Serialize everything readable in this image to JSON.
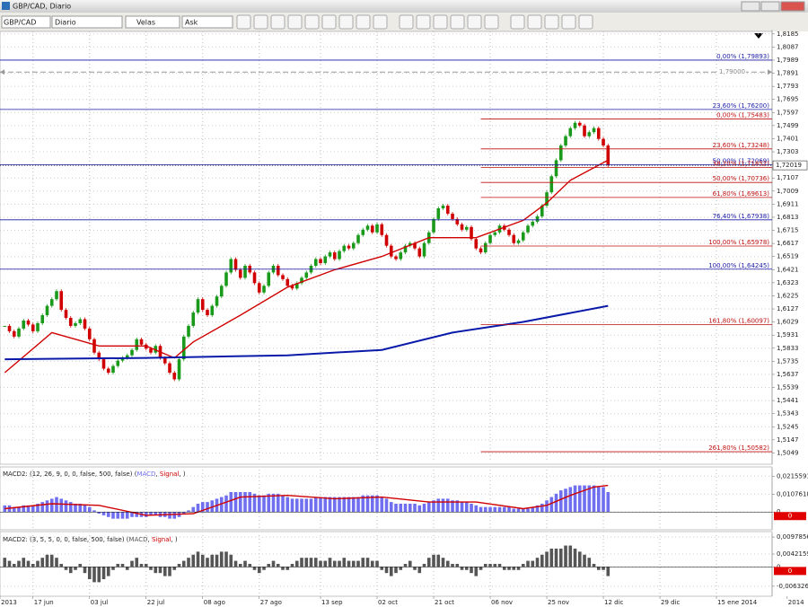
{
  "window": {
    "title": "GBP/CAD, Diario",
    "toolbar": {
      "symbol": "GBP/CAD",
      "period": "Diario",
      "chart_style": "Velas",
      "price_side": "Ask"
    }
  },
  "chart_data": [
    {
      "type": "candlestick",
      "up_color": "#1a9a1a",
      "down_color": "#d00000",
      "xlim": [
        -1,
        162.8
      ],
      "ylim": [
        1.4978,
        1.8204
      ],
      "grid": true,
      "values": [
        1.6,
        1.596,
        1.592,
        1.598,
        1.604,
        1.601,
        1.596,
        1.602,
        1.608,
        1.615,
        1.62,
        1.626,
        1.612,
        1.606,
        1.6,
        1.602,
        1.605,
        1.598,
        1.59,
        1.58,
        1.575,
        1.568,
        1.565,
        1.57,
        1.574,
        1.576,
        1.578,
        1.582,
        1.59,
        1.586,
        1.583,
        1.58,
        1.585,
        1.576,
        1.572,
        1.565,
        1.56,
        1.575,
        1.592,
        1.6,
        1.61,
        1.62,
        1.612,
        1.608,
        1.615,
        1.622,
        1.63,
        1.64,
        1.65,
        1.642,
        1.636,
        1.645,
        1.64,
        1.632,
        1.625,
        1.63,
        1.64,
        1.645,
        1.638,
        1.635,
        1.63,
        1.628,
        1.632,
        1.636,
        1.64,
        1.645,
        1.65,
        1.647,
        1.652,
        1.655,
        1.65,
        1.656,
        1.66,
        1.658,
        1.662,
        1.668,
        1.672,
        1.675,
        1.67,
        1.676,
        1.668,
        1.66,
        1.652,
        1.65,
        1.655,
        1.66,
        1.662,
        1.658,
        1.652,
        1.662,
        1.67,
        1.68,
        1.688,
        1.69,
        1.684,
        1.68,
        1.676,
        1.672,
        1.674,
        1.665,
        1.658,
        1.655,
        1.662,
        1.668,
        1.67,
        1.675,
        1.672,
        1.668,
        1.662,
        1.664,
        1.67,
        1.675,
        1.678,
        1.682,
        1.69,
        1.7,
        1.712,
        1.724,
        1.735,
        1.742,
        1.748,
        1.752,
        1.75,
        1.742,
        1.745,
        1.748,
        1.74,
        1.735,
        1.72019
      ],
      "lines": [
        {
          "color": "#d00000",
          "x": [
            0,
            10,
            20,
            30,
            36,
            40,
            50,
            60,
            70,
            80,
            90,
            100,
            110,
            115,
            120,
            128
          ],
          "values": [
            1.565,
            1.595,
            1.585,
            1.585,
            1.576,
            1.588,
            1.608,
            1.629,
            1.642,
            1.652,
            1.666,
            1.666,
            1.679,
            1.692,
            1.709,
            1.724
          ]
        },
        {
          "color": "#0a1aa8",
          "x": [
            0,
            30,
            60,
            80,
            95,
            110,
            128
          ],
          "values": [
            1.575,
            1.576,
            1.578,
            1.582,
            1.595,
            1.603,
            1.615
          ]
        }
      ],
      "fib_sets": [
        {
          "color": "#1a1aa6",
          "start_x": -1,
          "levels": [
            {
              "label": "0,00% (1,79893)",
              "value": 1.79893
            },
            {
              "label": "23,60% (1,76200)",
              "value": 1.762
            },
            {
              "label": "50,00% (1,72069)",
              "value": 1.72069
            },
            {
              "label": "76,40% (1,67938)",
              "value": 1.67938
            },
            {
              "label": "100,00% (1,64245)",
              "value": 1.64245
            }
          ]
        },
        {
          "color": "#c01010",
          "start_x": 101,
          "levels": [
            {
              "label": "0,00% (1,75483)",
              "value": 1.75483
            },
            {
              "label": "23,60% (1,73248)",
              "value": 1.73248
            },
            {
              "label": "38,20% (1,71852)",
              "value": 1.71852
            },
            {
              "label": "50,00% (1,70736)",
              "value": 1.70736
            },
            {
              "label": "61,80% (1,69613)",
              "value": 1.69613
            },
            {
              "label": "100,00% (1,65978)",
              "value": 1.65978
            },
            {
              "label": "161,80% (1,60097)",
              "value": 1.60097
            },
            {
              "label": "261,80% (1,50582)",
              "value": 1.50582
            }
          ]
        }
      ],
      "reference_line": {
        "value": 1.79,
        "label": "1,79000"
      },
      "last_price": {
        "value": 1.72019,
        "label": "1,72019"
      },
      "yticks": [
        {
          "value": 1.8185,
          "label": "1,8185"
        },
        {
          "value": 1.8087,
          "label": "1,8087"
        },
        {
          "value": 1.7989,
          "label": "1,7989"
        },
        {
          "value": 1.7891,
          "label": "1,7891"
        },
        {
          "value": 1.7793,
          "label": "1,7793"
        },
        {
          "value": 1.7695,
          "label": "1,7695"
        },
        {
          "value": 1.7597,
          "label": "1,7597"
        },
        {
          "value": 1.7499,
          "label": "1,7499"
        },
        {
          "value": 1.7401,
          "label": "1,7401"
        },
        {
          "value": 1.7303,
          "label": "1,7303"
        },
        {
          "value": 1.7205,
          "label": "1,7205"
        },
        {
          "value": 1.7107,
          "label": "1,7107"
        },
        {
          "value": 1.7009,
          "label": "1,7009"
        },
        {
          "value": 1.6911,
          "label": "1,6911"
        },
        {
          "value": 1.6813,
          "label": "1,6813"
        },
        {
          "value": 1.6715,
          "label": "1,6715"
        },
        {
          "value": 1.6617,
          "label": "1,6617"
        },
        {
          "value": 1.6519,
          "label": "1,6519"
        },
        {
          "value": 1.6421,
          "label": "1,6421"
        },
        {
          "value": 1.6323,
          "label": "1,6323"
        },
        {
          "value": 1.6225,
          "label": "1,6225"
        },
        {
          "value": 1.6127,
          "label": "1,6127"
        },
        {
          "value": 1.6029,
          "label": "1,6029"
        },
        {
          "value": 1.5931,
          "label": "1,5931"
        },
        {
          "value": 1.5833,
          "label": "1,5833"
        },
        {
          "value": 1.5735,
          "label": "1,5735"
        },
        {
          "value": 1.5637,
          "label": "1,5637"
        },
        {
          "value": 1.5539,
          "label": "1,5539"
        },
        {
          "value": 1.5441,
          "label": "1,5441"
        },
        {
          "value": 1.5343,
          "label": "1,5343"
        },
        {
          "value": 1.5245,
          "label": "1,5245"
        },
        {
          "value": 1.5147,
          "label": "1,5147"
        },
        {
          "value": 1.5049,
          "label": "1,5049"
        }
      ]
    },
    {
      "type": "bar",
      "xlim": [
        -1,
        162.8
      ],
      "ylim": [
        -0.0096,
        0.0255
      ],
      "grid": true,
      "legend_prefix": "MACD2: (12, 26, 9, 0, 0, false, 500, false) (",
      "legend_separator": ", ",
      "legend_suffix": ", )",
      "last_value": 0,
      "yticks": [
        {
          "value": 0.0215591,
          "label": "0,0215591"
        },
        {
          "value": 0.0107618,
          "label": "0,0107618"
        },
        0
      ],
      "series": [
        {
          "name": "MACD",
          "color": "#6f6ff0",
          "values": [
            0.004,
            0.004,
            0.003,
            0.003,
            0.004,
            0.004,
            0.004,
            0.005,
            0.006,
            0.007,
            0.008,
            0.009,
            0.008,
            0.007,
            0.006,
            0.005,
            0.005,
            0.004,
            0.003,
            0.001,
            -0.001,
            -0.002,
            -0.003,
            -0.004,
            -0.004,
            -0.004,
            -0.004,
            -0.003,
            -0.003,
            -0.003,
            -0.003,
            -0.002,
            -0.002,
            -0.003,
            -0.003,
            -0.004,
            -0.004,
            -0.003,
            -0.001,
            0.001,
            0.003,
            0.005,
            0.006,
            0.006,
            0.007,
            0.008,
            0.009,
            0.01,
            0.012,
            0.012,
            0.012,
            0.012,
            0.012,
            0.011,
            0.01,
            0.01,
            0.011,
            0.011,
            0.011,
            0.01,
            0.009,
            0.008,
            0.008,
            0.008,
            0.008,
            0.008,
            0.009,
            0.009,
            0.009,
            0.009,
            0.009,
            0.009,
            0.009,
            0.009,
            0.009,
            0.009,
            0.01,
            0.01,
            0.01,
            0.01,
            0.009,
            0.008,
            0.006,
            0.005,
            0.005,
            0.005,
            0.005,
            0.005,
            0.004,
            0.005,
            0.006,
            0.007,
            0.008,
            0.008,
            0.008,
            0.007,
            0.007,
            0.006,
            0.006,
            0.005,
            0.004,
            0.003,
            0.003,
            0.003,
            0.003,
            0.003,
            0.003,
            0.003,
            0.002,
            0.002,
            0.002,
            0.002,
            0.003,
            0.004,
            0.005,
            0.007,
            0.009,
            0.011,
            0.013,
            0.014,
            0.015,
            0.016,
            0.016,
            0.016,
            0.016,
            0.016,
            0.015,
            0.015,
            0.012
          ]
        },
        {
          "name": "Signal",
          "color": "#d00000",
          "x": [
            0,
            10,
            20,
            30,
            40,
            50,
            60,
            70,
            80,
            90,
            100,
            110,
            115,
            120,
            125,
            128
          ],
          "values": [
            0.002,
            0.005,
            0.004,
            -0.002,
            -0.001,
            0.009,
            0.01,
            0.008,
            0.009,
            0.006,
            0.006,
            0.002,
            0.004,
            0.01,
            0.015,
            0.016
          ]
        }
      ]
    },
    {
      "type": "bar",
      "xlim": [
        -1,
        162.8
      ],
      "ylim": [
        -0.009,
        0.0104
      ],
      "grid": true,
      "legend_prefix": "MACD2: (3, 5, 5, 0, 0, false, 500, false) (",
      "legend_separator": ", ",
      "legend_suffix": ", )",
      "last_value": 0,
      "yticks": [
        {
          "value": 0.0097856,
          "label": "0,0097856"
        },
        {
          "value": 0.0042159,
          "label": "0,0042159"
        },
        0,
        {
          "value": -0.0063261,
          "label": "-0,0063261"
        }
      ],
      "series": [
        {
          "name": "MACD",
          "color": "#555555",
          "values": [
            0.003,
            0.002,
            0.001,
            0.002,
            0.003,
            0.002,
            0.001,
            0.002,
            0.003,
            0.004,
            0.004,
            0.003,
            0.001,
            -0.001,
            -0.002,
            -0.001,
            0.001,
            -0.002,
            -0.004,
            -0.005,
            -0.005,
            -0.004,
            -0.003,
            -0.001,
            0.001,
            0.001,
            -0.001,
            0.002,
            0.003,
            0.001,
            0.001,
            -0.001,
            -0.002,
            -0.002,
            -0.003,
            -0.003,
            -0.001,
            0.001,
            0.002,
            0.003,
            0.004,
            0.005,
            0.004,
            0.003,
            0.004,
            0.004,
            0.005,
            0.005,
            0.004,
            0.002,
            0.001,
            0.002,
            0.001,
            -0.001,
            -0.002,
            -0.001,
            0.001,
            0.002,
            0.001,
            -0.001,
            -0.001,
            0.001,
            0.002,
            0.003,
            0.003,
            0.003,
            0.003,
            0.002,
            0.002,
            0.003,
            0.002,
            0.002,
            0.003,
            0.002,
            0.002,
            0.002,
            0.003,
            0.003,
            0.002,
            0.002,
            -0.001,
            -0.002,
            -0.003,
            -0.002,
            -0.001,
            0.001,
            0.002,
            -0.001,
            -0.002,
            0.001,
            0.003,
            0.004,
            0.004,
            0.003,
            0.002,
            0.001,
            0.001,
            -0.001,
            -0.001,
            -0.002,
            -0.003,
            -0.001,
            0.001,
            0.001,
            0.001,
            0.001,
            -0.001,
            -0.001,
            -0.001,
            -0.001,
            0.001,
            0.002,
            0.002,
            0.003,
            0.004,
            0.005,
            0.006,
            0.006,
            0.006,
            0.007,
            0.007,
            0.006,
            0.005,
            0.004,
            0.003,
            0.001,
            -0.001,
            -0.001,
            -0.003
          ]
        },
        {
          "name": "Signal",
          "color": "#d00000"
        }
      ],
      "xticks": [
        {
          "value": -1,
          "label": "2013"
        },
        {
          "value": 6,
          "label": "17 jun"
        },
        {
          "value": 18,
          "label": "03 jul"
        },
        {
          "value": 30,
          "label": "22 jul"
        },
        {
          "value": 42,
          "label": "08 ago"
        },
        {
          "value": 54,
          "label": "27 ago"
        },
        {
          "value": 67,
          "label": "13 sep"
        },
        {
          "value": 79,
          "label": "02 oct"
        },
        {
          "value": 91,
          "label": "21 oct"
        },
        {
          "value": 103,
          "label": "06 nov"
        },
        {
          "value": 115,
          "label": "25 nov"
        },
        {
          "value": 127,
          "label": "12 dic"
        },
        {
          "value": 139,
          "label": "29 dic"
        },
        {
          "value": 151,
          "label": "15 ene 2014"
        },
        {
          "value": 166,
          "label": "2014"
        }
      ]
    }
  ]
}
